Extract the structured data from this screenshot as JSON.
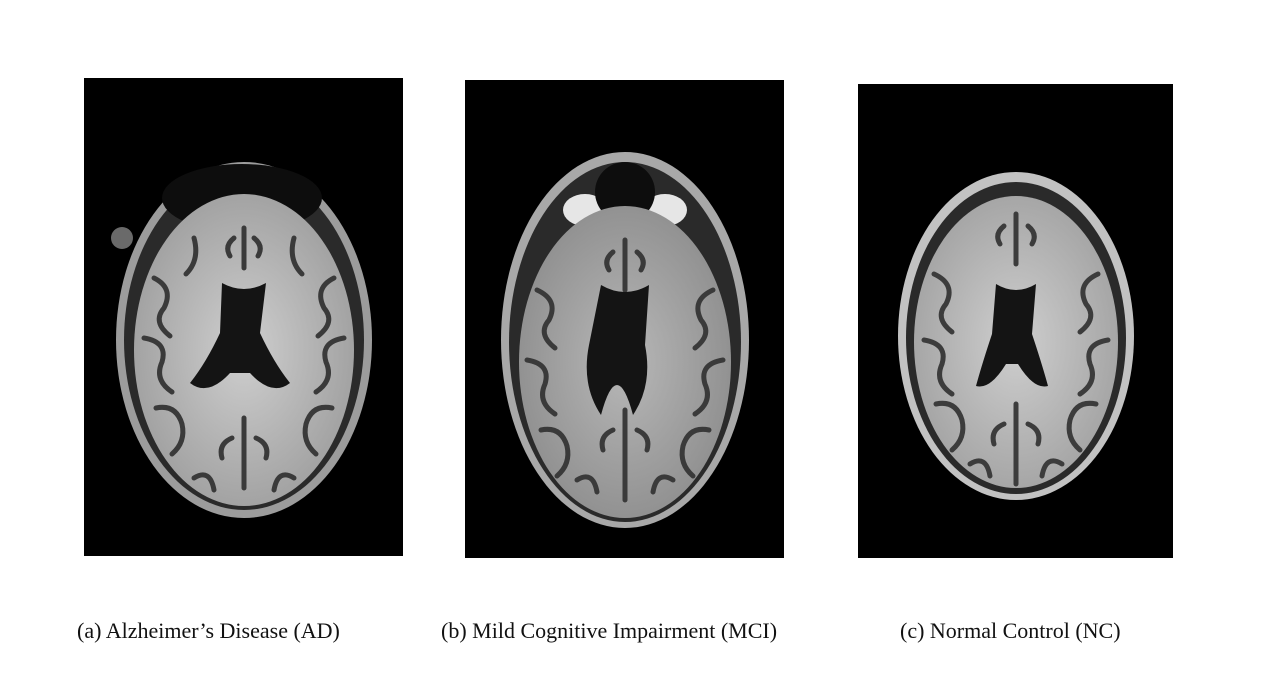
{
  "figure": {
    "panels": [
      {
        "id": "a",
        "caption": "(a) Alzheimer’s Disease (AD)"
      },
      {
        "id": "b",
        "caption": "(b) Mild Cognitive Impairment (MCI)"
      },
      {
        "id": "c",
        "caption": "(c) Normal Control (NC)"
      }
    ],
    "colors": {
      "background": "#000000",
      "scalp": "#bdbdbd",
      "white_matter": "#c4c4c4",
      "gray_matter": "#6e6e6e",
      "csf": "#1a1a1a"
    }
  }
}
